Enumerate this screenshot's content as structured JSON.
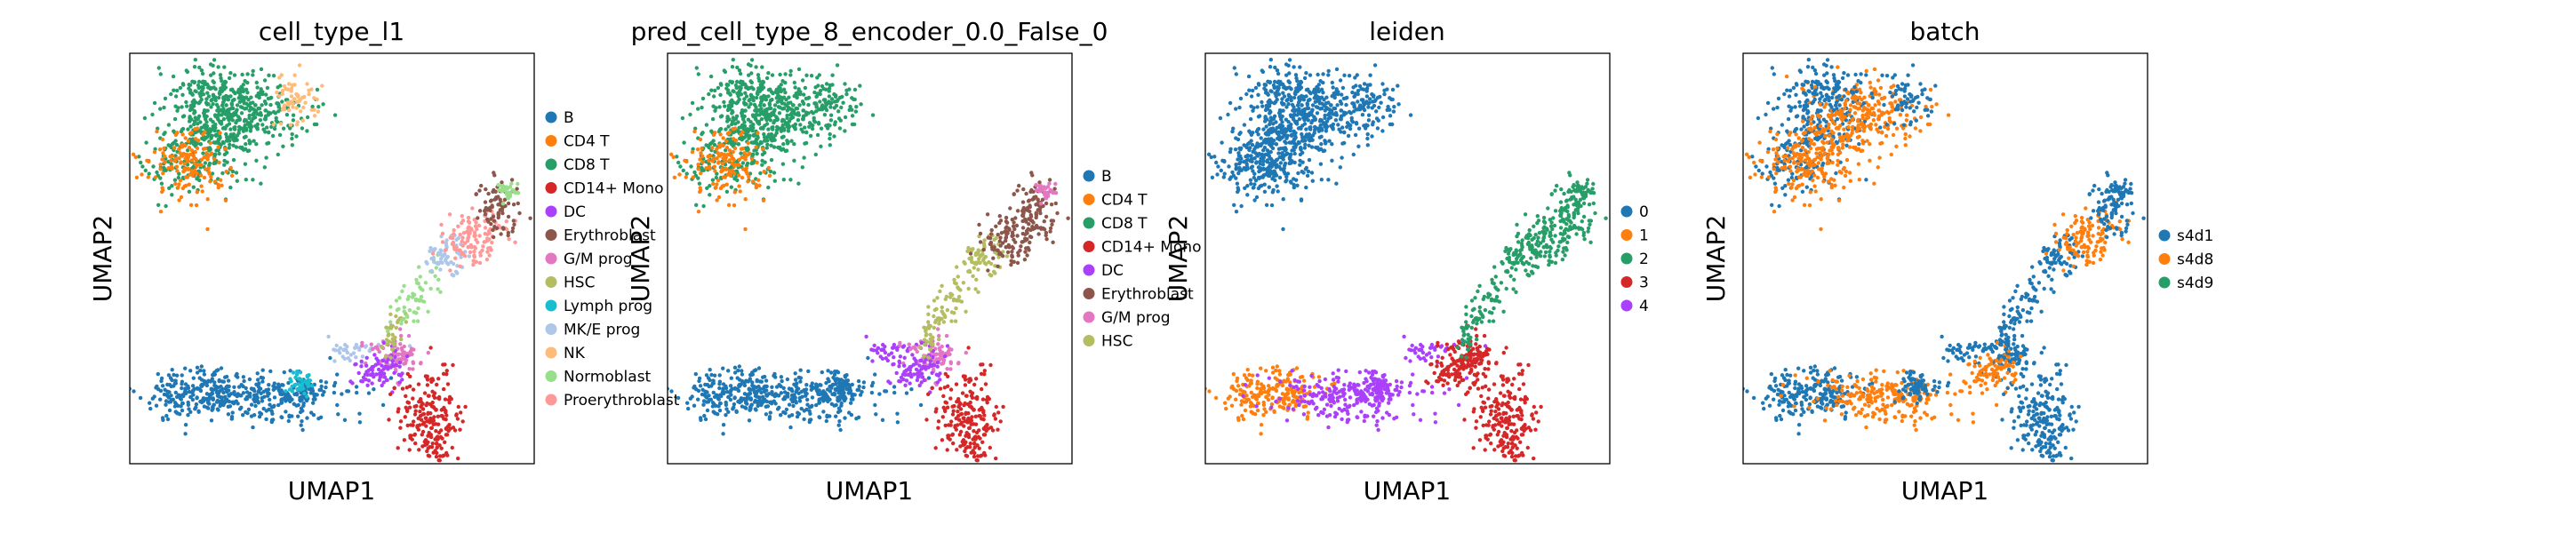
{
  "chart_data": [
    {
      "type": "scatter",
      "title": "cell_type_l1",
      "xlabel": "UMAP1",
      "ylabel": "UMAP2",
      "legend_position": "right-outside",
      "series": [
        {
          "name": "B",
          "color": "#1f77b4"
        },
        {
          "name": "CD4 T",
          "color": "#ff7f0e"
        },
        {
          "name": "CD8 T",
          "color": "#279e68"
        },
        {
          "name": "CD14+ Mono",
          "color": "#d62728"
        },
        {
          "name": "DC",
          "color": "#aa40fc"
        },
        {
          "name": "Erythroblast",
          "color": "#8c564b"
        },
        {
          "name": "G/M prog",
          "color": "#e377c2"
        },
        {
          "name": "HSC",
          "color": "#b5bd61"
        },
        {
          "name": "Lymph prog",
          "color": "#17becf"
        },
        {
          "name": "MK/E prog",
          "color": "#aec7e8"
        },
        {
          "name": "NK",
          "color": "#ffbb78"
        },
        {
          "name": "Normoblast",
          "color": "#98df8a"
        },
        {
          "name": "Proerythroblast",
          "color": "#ff9896"
        }
      ]
    },
    {
      "type": "scatter",
      "title": "pred_cell_type_8_encoder_0.0_False_0",
      "xlabel": "UMAP1",
      "ylabel": "UMAP2",
      "legend_position": "right-outside",
      "series": [
        {
          "name": "B",
          "color": "#1f77b4"
        },
        {
          "name": "CD4 T",
          "color": "#ff7f0e"
        },
        {
          "name": "CD8 T",
          "color": "#279e68"
        },
        {
          "name": "CD14+ Mono",
          "color": "#d62728"
        },
        {
          "name": "DC",
          "color": "#aa40fc"
        },
        {
          "name": "Erythroblast",
          "color": "#8c564b"
        },
        {
          "name": "G/M prog",
          "color": "#e377c2"
        },
        {
          "name": "HSC",
          "color": "#b5bd61"
        }
      ]
    },
    {
      "type": "scatter",
      "title": "leiden",
      "xlabel": "UMAP1",
      "ylabel": "UMAP2",
      "legend_position": "right-outside",
      "series": [
        {
          "name": "0",
          "color": "#1f77b4"
        },
        {
          "name": "1",
          "color": "#ff7f0e"
        },
        {
          "name": "2",
          "color": "#279e68"
        },
        {
          "name": "3",
          "color": "#d62728"
        },
        {
          "name": "4",
          "color": "#aa40fc"
        }
      ]
    },
    {
      "type": "scatter",
      "title": "batch",
      "xlabel": "UMAP1",
      "ylabel": "UMAP2",
      "legend_position": "right-outside",
      "series": [
        {
          "name": "s4d1",
          "color": "#1f77b4"
        },
        {
          "name": "s4d8",
          "color": "#ff7f0e"
        },
        {
          "name": "s4d9",
          "color": "#279e68"
        }
      ]
    }
  ]
}
